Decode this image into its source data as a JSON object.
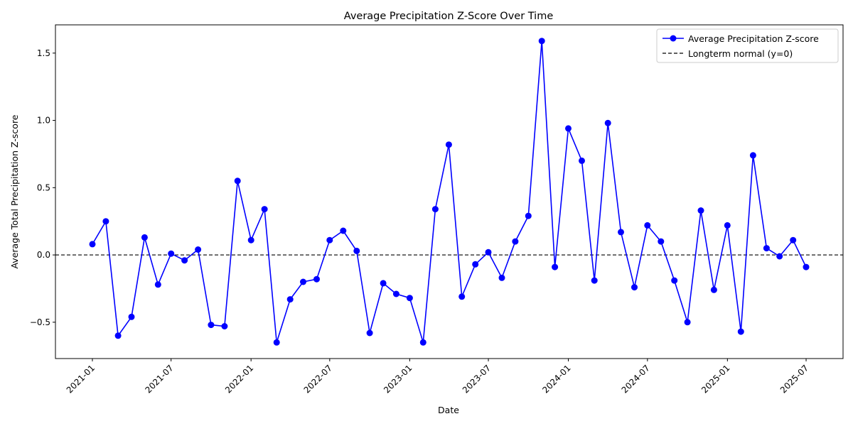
{
  "chart_data": {
    "type": "line",
    "title": "Average Precipitation Z-Score Over Time",
    "xlabel": "Date",
    "ylabel": "Average Total Precipitation Z-score",
    "xlim": [
      "2020-10-08",
      "2025-09-24"
    ],
    "ylim": [
      -0.77,
      1.71
    ],
    "x_ticks": [
      "2021-01",
      "2021-07",
      "2022-01",
      "2022-07",
      "2023-01",
      "2023-07",
      "2024-01",
      "2024-07",
      "2025-01",
      "2025-07"
    ],
    "y_ticks": [
      -0.5,
      0.0,
      0.5,
      1.0,
      1.5
    ],
    "grid": false,
    "legend_position": "top-right",
    "series": [
      {
        "name": "Average Precipitation Z-score",
        "color": "#0000ff",
        "marker": "circle",
        "x": [
          "2021-01",
          "2021-02",
          "2021-03",
          "2021-04",
          "2021-05",
          "2021-06",
          "2021-07",
          "2021-08",
          "2021-09",
          "2021-10",
          "2021-11",
          "2021-12",
          "2022-01",
          "2022-02",
          "2022-03",
          "2022-04",
          "2022-05",
          "2022-06",
          "2022-07",
          "2022-08",
          "2022-09",
          "2022-10",
          "2022-11",
          "2022-12",
          "2023-01",
          "2023-02",
          "2023-03",
          "2023-04",
          "2023-05",
          "2023-06",
          "2023-07",
          "2023-08",
          "2023-09",
          "2023-10",
          "2023-11",
          "2023-12",
          "2024-01",
          "2024-02",
          "2024-03",
          "2024-04",
          "2024-05",
          "2024-06",
          "2024-07",
          "2024-08",
          "2024-09",
          "2024-10",
          "2024-11",
          "2024-12",
          "2025-01",
          "2025-02",
          "2025-03",
          "2025-04",
          "2025-05",
          "2025-06",
          "2025-07"
        ],
        "values": [
          0.08,
          0.25,
          -0.6,
          -0.46,
          0.13,
          -0.22,
          0.01,
          -0.04,
          0.04,
          -0.52,
          -0.53,
          0.55,
          0.11,
          0.34,
          -0.65,
          -0.33,
          -0.2,
          -0.18,
          0.11,
          0.18,
          0.03,
          -0.58,
          -0.21,
          -0.29,
          -0.32,
          -0.65,
          0.34,
          0.82,
          -0.31,
          -0.07,
          0.02,
          -0.17,
          0.1,
          0.29,
          1.59,
          -0.09,
          0.94,
          0.7,
          -0.19,
          0.98,
          0.17,
          -0.24,
          0.22,
          0.1,
          -0.19,
          -0.5,
          0.33,
          -0.26,
          0.22,
          -0.57,
          0.74,
          0.05,
          -0.01,
          0.11,
          -0.09
        ]
      },
      {
        "name": "Longterm normal (y=0)",
        "color": "#000000",
        "style": "dashed",
        "y": 0
      }
    ]
  }
}
